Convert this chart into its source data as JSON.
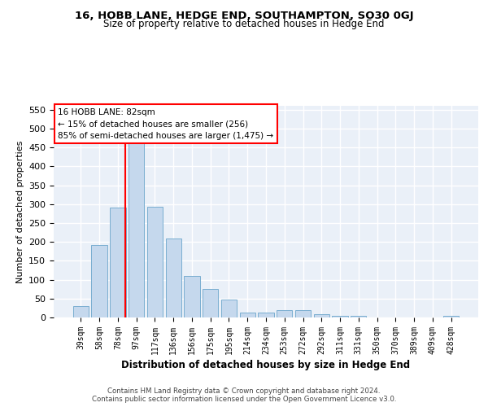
{
  "title": "16, HOBB LANE, HEDGE END, SOUTHAMPTON, SO30 0GJ",
  "subtitle": "Size of property relative to detached houses in Hedge End",
  "xlabel": "Distribution of detached houses by size in Hedge End",
  "ylabel": "Number of detached properties",
  "bar_color": "#c5d8ed",
  "bar_edge_color": "#7aaed0",
  "background_color": "#eaf0f8",
  "grid_color": "#ffffff",
  "categories": [
    "39sqm",
    "58sqm",
    "78sqm",
    "97sqm",
    "117sqm",
    "136sqm",
    "156sqm",
    "175sqm",
    "195sqm",
    "214sqm",
    "234sqm",
    "253sqm",
    "272sqm",
    "292sqm",
    "311sqm",
    "331sqm",
    "350sqm",
    "370sqm",
    "389sqm",
    "409sqm",
    "428sqm"
  ],
  "values": [
    30,
    192,
    290,
    460,
    292,
    210,
    110,
    75,
    48,
    13,
    13,
    20,
    20,
    8,
    5,
    5,
    0,
    0,
    0,
    0,
    5
  ],
  "marker_bin_index": 2.42,
  "annotation_title": "16 HOBB LANE: 82sqm",
  "annotation_line1": "← 15% of detached houses are smaller (256)",
  "annotation_line2": "85% of semi-detached houses are larger (1,475) →",
  "ylim": [
    0,
    560
  ],
  "yticks": [
    0,
    50,
    100,
    150,
    200,
    250,
    300,
    350,
    400,
    450,
    500,
    550
  ],
  "footer1": "Contains HM Land Registry data © Crown copyright and database right 2024.",
  "footer2": "Contains public sector information licensed under the Open Government Licence v3.0."
}
